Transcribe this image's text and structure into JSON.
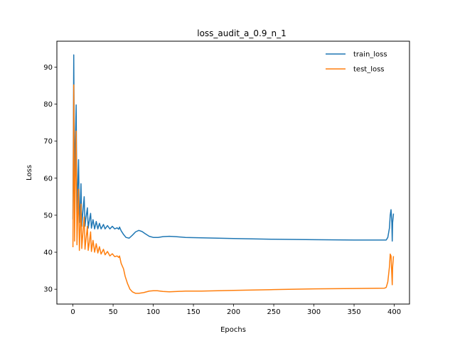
{
  "chart_data": {
    "type": "line",
    "title": "loss_audit_a_0.9_n_1",
    "xlabel": "Epochs",
    "ylabel": "Loss",
    "xlim": [
      -20,
      419
    ],
    "ylim": [
      26,
      97
    ],
    "xticks": [
      0,
      50,
      100,
      150,
      200,
      250,
      300,
      350,
      400
    ],
    "yticks": [
      30,
      40,
      50,
      60,
      70,
      80,
      90
    ],
    "grid": false,
    "legend_position": "top-right",
    "series": [
      {
        "name": "train_loss",
        "color": "#1f77b4",
        "points": [
          [
            0,
            49
          ],
          [
            1,
            93.3
          ],
          [
            2,
            55
          ],
          [
            3,
            70
          ],
          [
            4,
            79.8
          ],
          [
            5,
            50
          ],
          [
            6,
            58
          ],
          [
            7,
            65
          ],
          [
            8,
            48
          ],
          [
            9,
            52
          ],
          [
            10,
            58.5
          ],
          [
            11,
            47
          ],
          [
            12,
            50
          ],
          [
            14,
            55
          ],
          [
            15,
            47
          ],
          [
            16,
            49
          ],
          [
            18,
            52
          ],
          [
            19,
            46.5
          ],
          [
            20,
            48
          ],
          [
            22,
            50.5
          ],
          [
            23,
            46.5
          ],
          [
            25,
            48.8
          ],
          [
            27,
            46.3
          ],
          [
            29,
            48.3
          ],
          [
            31,
            46.3
          ],
          [
            33,
            47.8
          ],
          [
            35,
            46.3
          ],
          [
            38,
            47.5
          ],
          [
            40,
            46.3
          ],
          [
            43,
            47.2
          ],
          [
            46,
            46.3
          ],
          [
            49,
            47
          ],
          [
            52,
            46.3
          ],
          [
            55,
            46.6
          ],
          [
            57,
            46.2
          ],
          [
            58,
            46.8
          ],
          [
            60,
            45.8
          ],
          [
            63,
            44.8
          ],
          [
            66,
            44
          ],
          [
            70,
            43.8
          ],
          [
            74,
            44.6
          ],
          [
            78,
            45.5
          ],
          [
            82,
            45.9
          ],
          [
            86,
            45.6
          ],
          [
            90,
            45
          ],
          [
            95,
            44.3
          ],
          [
            100,
            44
          ],
          [
            106,
            44
          ],
          [
            112,
            44.2
          ],
          [
            120,
            44.3
          ],
          [
            128,
            44.2
          ],
          [
            140,
            44
          ],
          [
            160,
            43.9
          ],
          [
            200,
            43.7
          ],
          [
            250,
            43.5
          ],
          [
            300,
            43.4
          ],
          [
            350,
            43.3
          ],
          [
            390,
            43.3
          ],
          [
            392,
            44
          ],
          [
            394,
            46.5
          ],
          [
            395,
            50
          ],
          [
            396,
            51.5
          ],
          [
            397,
            48
          ],
          [
            397.5,
            43
          ],
          [
            398,
            48
          ],
          [
            399,
            50.3
          ]
        ]
      },
      {
        "name": "test_loss",
        "color": "#ff7f0e",
        "points": [
          [
            0,
            41.5
          ],
          [
            1,
            85.2
          ],
          [
            2,
            43
          ],
          [
            3,
            60
          ],
          [
            4,
            72.7
          ],
          [
            5,
            42
          ],
          [
            6,
            50
          ],
          [
            7,
            57
          ],
          [
            8,
            40.5
          ],
          [
            9,
            46
          ],
          [
            10,
            53
          ],
          [
            11,
            41
          ],
          [
            12,
            44
          ],
          [
            14,
            49.5
          ],
          [
            15,
            40.8
          ],
          [
            16,
            43
          ],
          [
            18,
            47
          ],
          [
            19,
            40.5
          ],
          [
            20,
            42
          ],
          [
            22,
            45.5
          ],
          [
            23,
            40.2
          ],
          [
            25,
            43.2
          ],
          [
            27,
            40
          ],
          [
            29,
            42.3
          ],
          [
            31,
            39.8
          ],
          [
            33,
            41.5
          ],
          [
            35,
            39.5
          ],
          [
            38,
            40.8
          ],
          [
            40,
            39.3
          ],
          [
            43,
            40.2
          ],
          [
            46,
            39
          ],
          [
            49,
            39.6
          ],
          [
            52,
            38.8
          ],
          [
            55,
            39
          ],
          [
            57,
            38.6
          ],
          [
            58,
            39
          ],
          [
            60,
            37
          ],
          [
            63,
            35.5
          ],
          [
            65,
            33.5
          ],
          [
            68,
            31.5
          ],
          [
            71,
            30
          ],
          [
            74,
            29.3
          ],
          [
            78,
            28.9
          ],
          [
            82,
            28.9
          ],
          [
            88,
            29.1
          ],
          [
            95,
            29.5
          ],
          [
            100,
            29.6
          ],
          [
            105,
            29.6
          ],
          [
            112,
            29.4
          ],
          [
            120,
            29.3
          ],
          [
            130,
            29.4
          ],
          [
            140,
            29.5
          ],
          [
            160,
            29.5
          ],
          [
            200,
            29.7
          ],
          [
            250,
            29.9
          ],
          [
            300,
            30.1
          ],
          [
            350,
            30.2
          ],
          [
            388,
            30.3
          ],
          [
            390,
            30.5
          ],
          [
            392,
            32
          ],
          [
            394,
            36
          ],
          [
            395,
            39.5
          ],
          [
            396,
            39
          ],
          [
            397,
            34
          ],
          [
            397.5,
            31.2
          ],
          [
            398,
            36
          ],
          [
            399,
            38.8
          ]
        ]
      }
    ]
  }
}
